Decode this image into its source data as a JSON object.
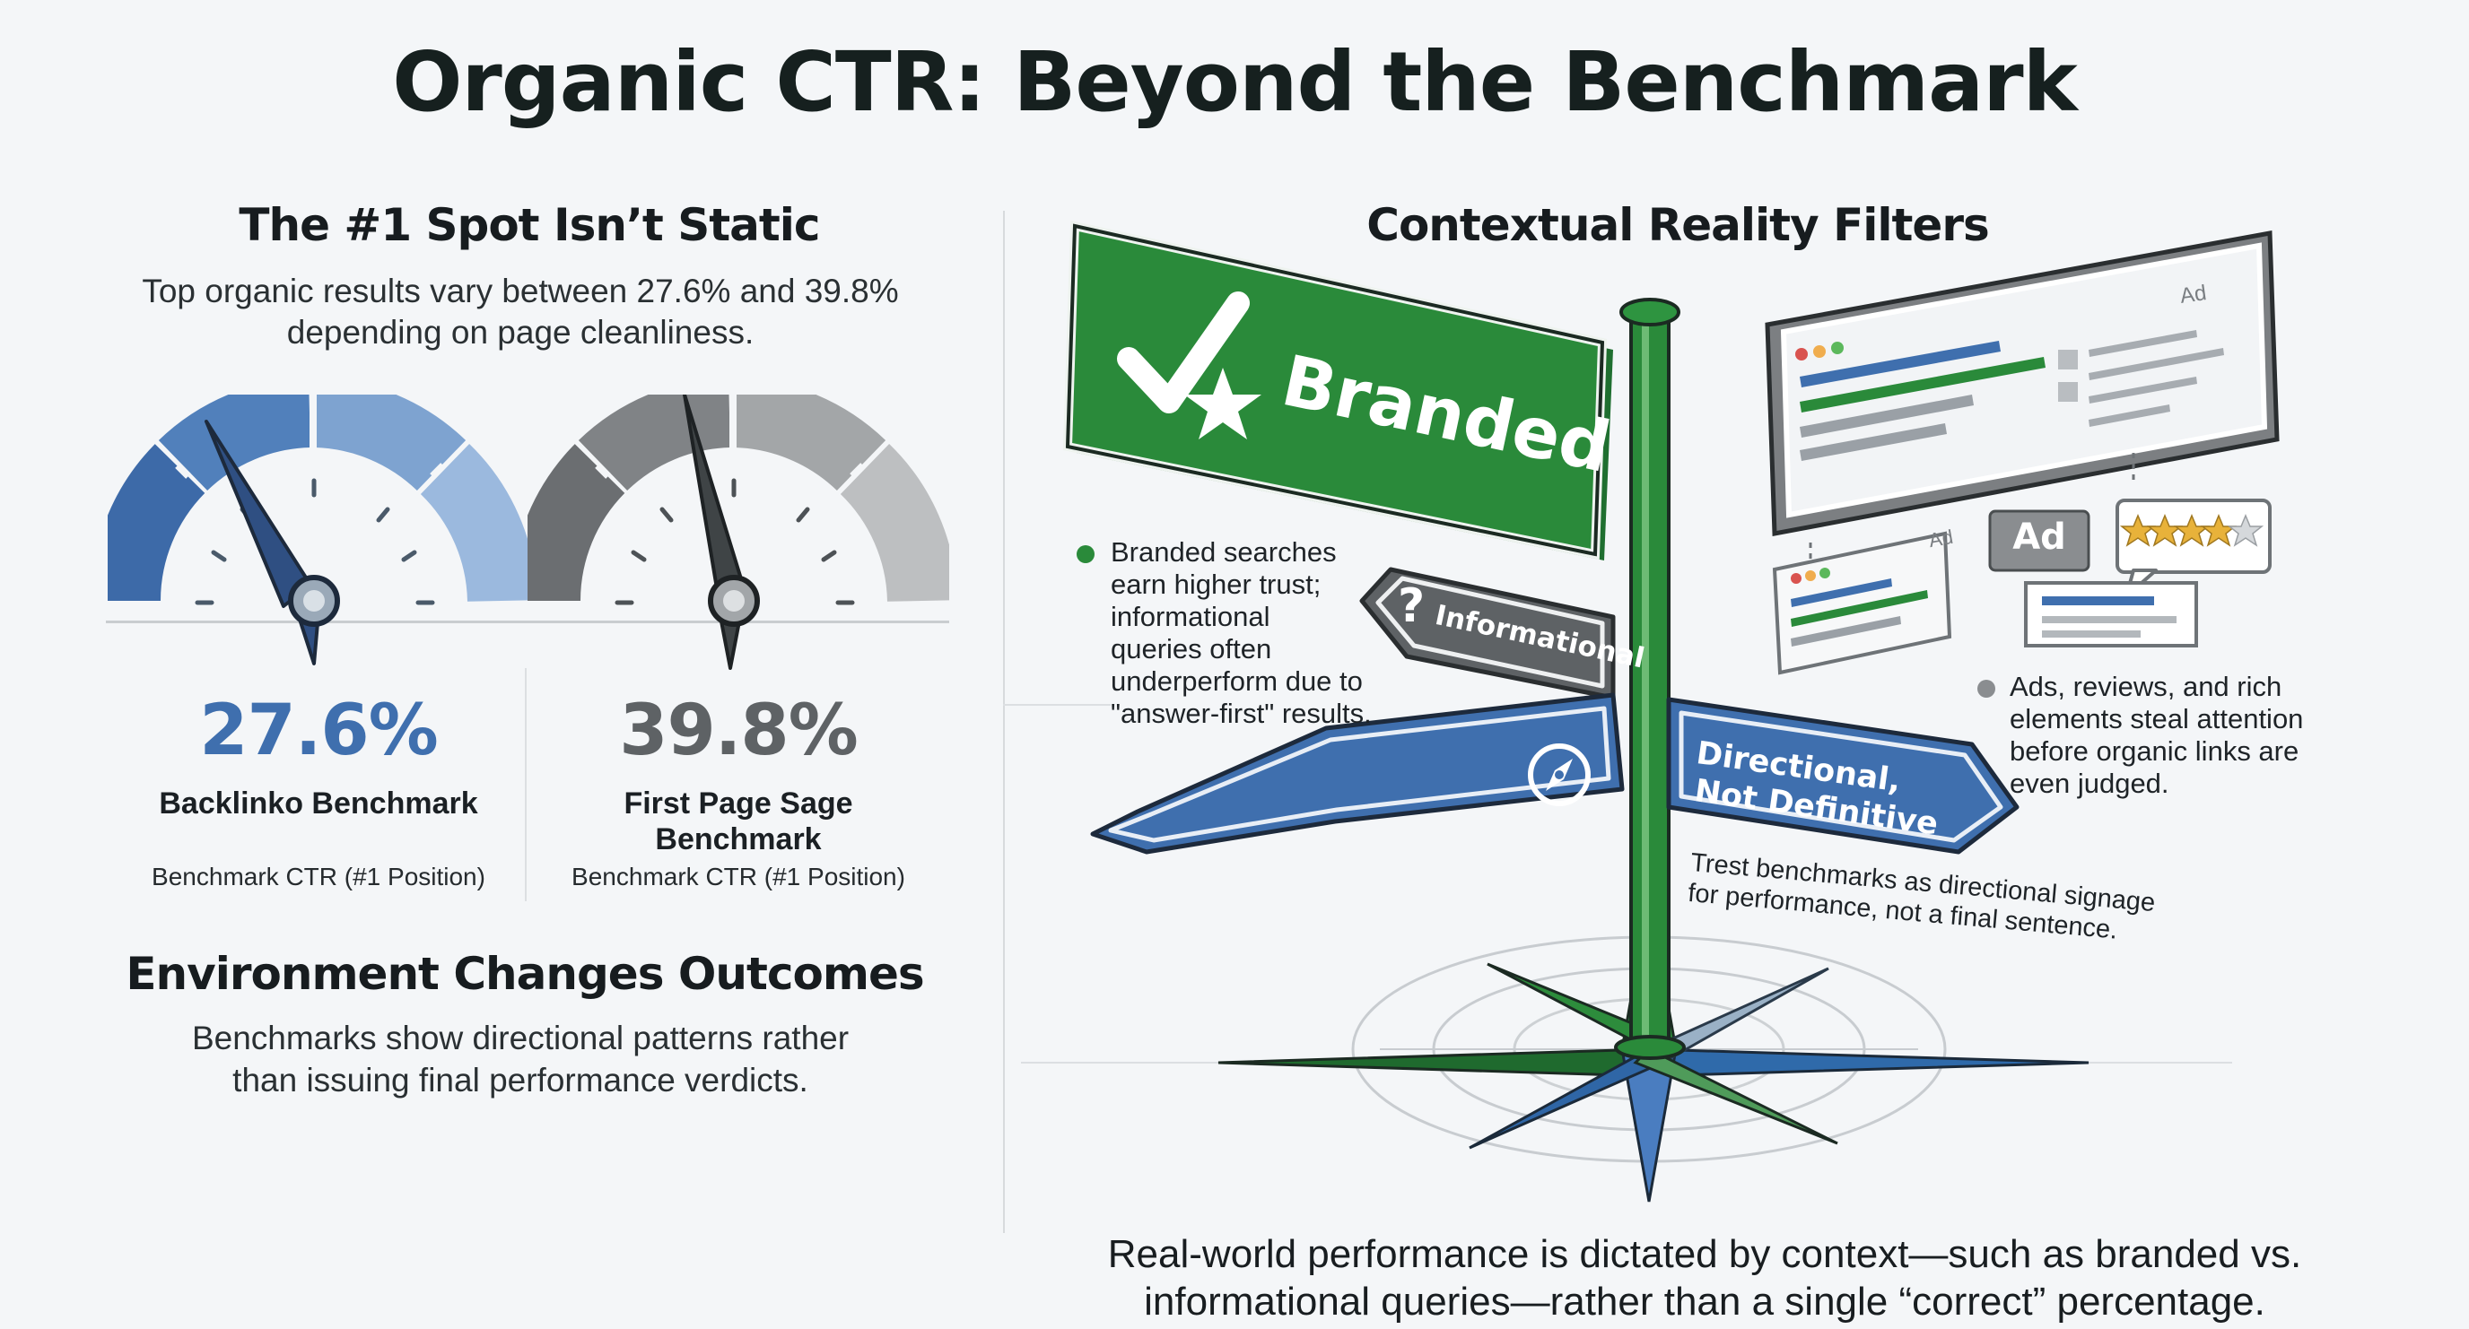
{
  "title": "Organic CTR: Beyond the Benchmark",
  "left": {
    "heading": "The #1 Spot Isn’t Static",
    "intro_line1": "Top organic results vary between 27.6% and 39.8%",
    "intro_line2": "depending on page cleanliness.",
    "gauges": [
      {
        "value": "27.6%",
        "label_line1": "Backlinko Benchmark",
        "label_line2": "",
        "caption": "Benchmark CTR (#1 Position)",
        "color": "#3f6fae"
      },
      {
        "value": "39.8%",
        "label_line1": "First Page Sage",
        "label_line2": "Benchmark",
        "caption": "Benchmark CTR (#1 Position)",
        "color": "#6b6e70"
      }
    ],
    "env_heading": "Environment Changes Outcomes",
    "env_line1": "Benchmarks show directional patterns rather",
    "env_line2": "than issuing final performance verdicts."
  },
  "right": {
    "heading": "Contextual Reality Filters",
    "signs": {
      "branded": "Branded",
      "informational": "Informational",
      "directional_line1": "Directional,",
      "directional_line2": "Not Definitive",
      "ad_tag": "Ad",
      "ad_badge": "Ad"
    },
    "note_branded": [
      "Branded searches",
      "earn higher trust;",
      "informational",
      "queries often",
      "underperform due to",
      "\"answer-first\" results."
    ],
    "note_ads": [
      "Ads, reviews, and rich",
      "elements steal attention",
      "before organic links are",
      "even judged."
    ],
    "note_directional": [
      "Trest benchmarks as directional signage",
      "for performance, not a final sentence."
    ],
    "bottom_line1": "Real-world performance is dictated by context—such as branded vs.",
    "bottom_line2": "informational queries—rather than a single “correct” percentage."
  },
  "icons": {
    "branded": "check-star-icon",
    "informational": "question-icon",
    "directional": "compass-icon",
    "rating": "star-rating-icon"
  },
  "colors": {
    "green": "#2a8a3a",
    "blue": "#3f6fae",
    "gray": "#6b6e70"
  }
}
